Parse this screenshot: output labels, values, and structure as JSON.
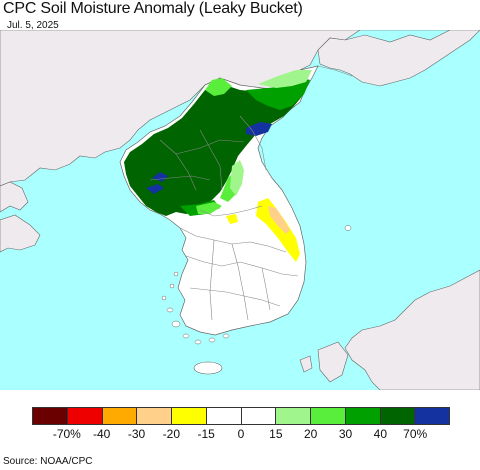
{
  "title": "CPC Soil Moisture Anomaly (Leaky Bucket)",
  "date": "Jul. 5, 2025",
  "source": "Source: NOAA/CPC",
  "colors": {
    "ocean": "#aaffff",
    "foreign_land": "#efeaee",
    "korea_land": "#ffffff",
    "border": "#888888"
  },
  "legend": {
    "colors": [
      "#6b0000",
      "#ee0000",
      "#ffaa00",
      "#ffd08a",
      "#ffff00",
      "#ffffff",
      "#ffffff",
      "#a0f58c",
      "#5aee3c",
      "#00a000",
      "#006400",
      "#1432a0"
    ],
    "labels": [
      "-70%",
      "-40",
      "-30",
      "-20",
      "-15",
      "0",
      "15",
      "20",
      "30",
      "40",
      "70%"
    ]
  }
}
